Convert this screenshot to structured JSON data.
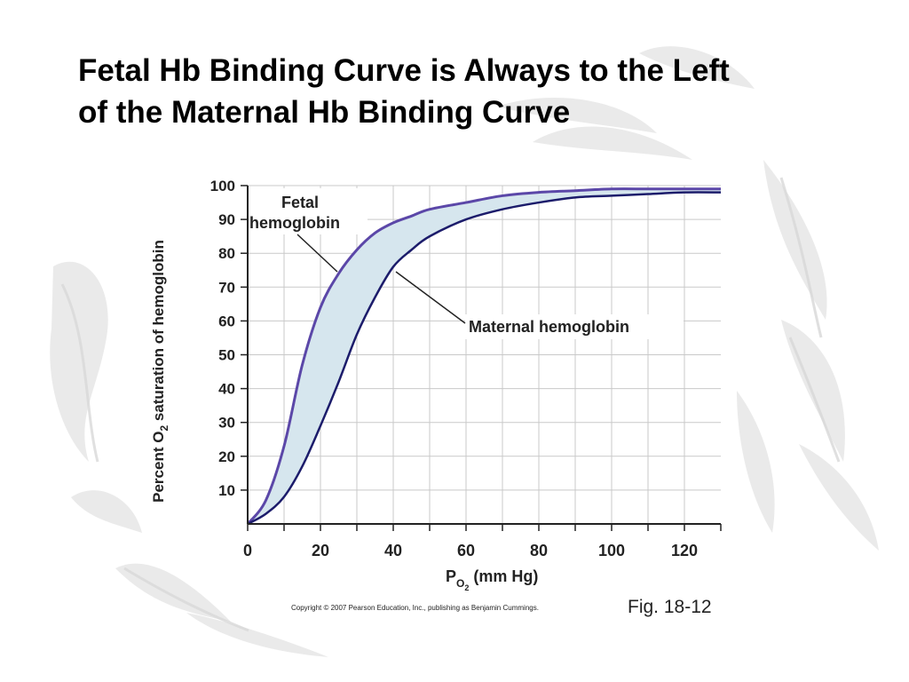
{
  "slide": {
    "title_line1": "Fetal Hb Binding Curve is Always to the Left",
    "title_line2": "of the Maternal Hb Binding Curve"
  },
  "chart_data": {
    "type": "line",
    "title": "",
    "xlabel_main": "P",
    "xlabel_sub": "O",
    "xlabel_subsub": "2",
    "xlabel_rest": " (mm Hg)",
    "ylabel_part1": "Percent O",
    "ylabel_sub": "2",
    "ylabel_part2": " saturation of hemoglobin",
    "xlim": [
      0,
      130
    ],
    "ylim": [
      0,
      100
    ],
    "xticks": [
      0,
      20,
      40,
      60,
      80,
      100,
      120
    ],
    "yticks": [
      10,
      20,
      30,
      40,
      50,
      60,
      70,
      80,
      90,
      100
    ],
    "grid": true,
    "series": [
      {
        "name": "Fetal hemoglobin",
        "label_line1": "Fetal",
        "label_line2": "hemoglobin",
        "color": "#5b47a8",
        "x": [
          0,
          5,
          10,
          15,
          20,
          25,
          30,
          35,
          40,
          45,
          50,
          60,
          70,
          80,
          90,
          100,
          110,
          120,
          130
        ],
        "y": [
          0,
          7,
          23,
          47,
          64,
          74,
          81,
          86,
          89,
          91,
          93,
          95,
          97,
          98,
          98.5,
          99,
          99,
          99,
          99
        ]
      },
      {
        "name": "Maternal hemoglobin",
        "label_line1": "Maternal hemoglobin",
        "color": "#1c1c6b",
        "x": [
          0,
          5,
          10,
          15,
          20,
          25,
          30,
          35,
          40,
          45,
          50,
          60,
          70,
          80,
          90,
          100,
          110,
          120,
          130
        ],
        "y": [
          0,
          3,
          8,
          17,
          29,
          42,
          56,
          67,
          76,
          81,
          85,
          90,
          93,
          95,
          96.5,
          97,
          97.5,
          98,
          98
        ]
      }
    ],
    "fill_between_color": "#d6e6ee"
  },
  "footer": {
    "copyright": "Copyright © 2007 Pearson Education, Inc., publishing as Benjamin Cummings.",
    "fig_label": "Fig. 18-12"
  }
}
